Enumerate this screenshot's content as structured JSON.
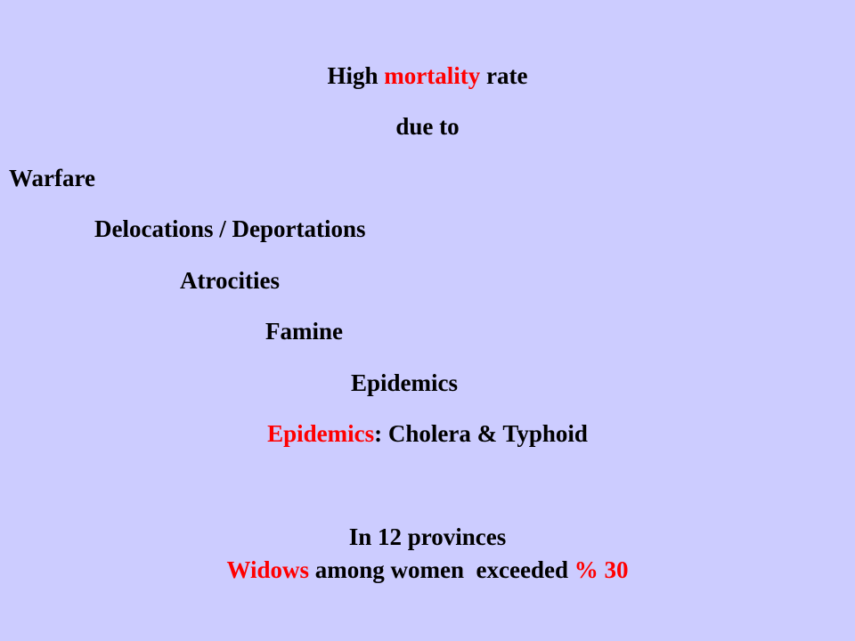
{
  "colors": {
    "background": "#ccccff",
    "text": "#000000",
    "highlight": "#ff0000"
  },
  "heading": {
    "part1": "High ",
    "highlight": "mortality",
    "part2": " rate",
    "subline": "due to"
  },
  "causes": [
    "Warfare",
    "Delocations / Deportations",
    "Atrocities",
    "Famine",
    "Epidemics"
  ],
  "epidemics_line": {
    "highlight": "Epidemics",
    "rest": ": Cholera & Typhoid"
  },
  "provinces_line": "In 12 provinces",
  "widows_line": {
    "highlight1": "Widows",
    "middle": " among women  exceeded ",
    "highlight2": "% 30"
  }
}
